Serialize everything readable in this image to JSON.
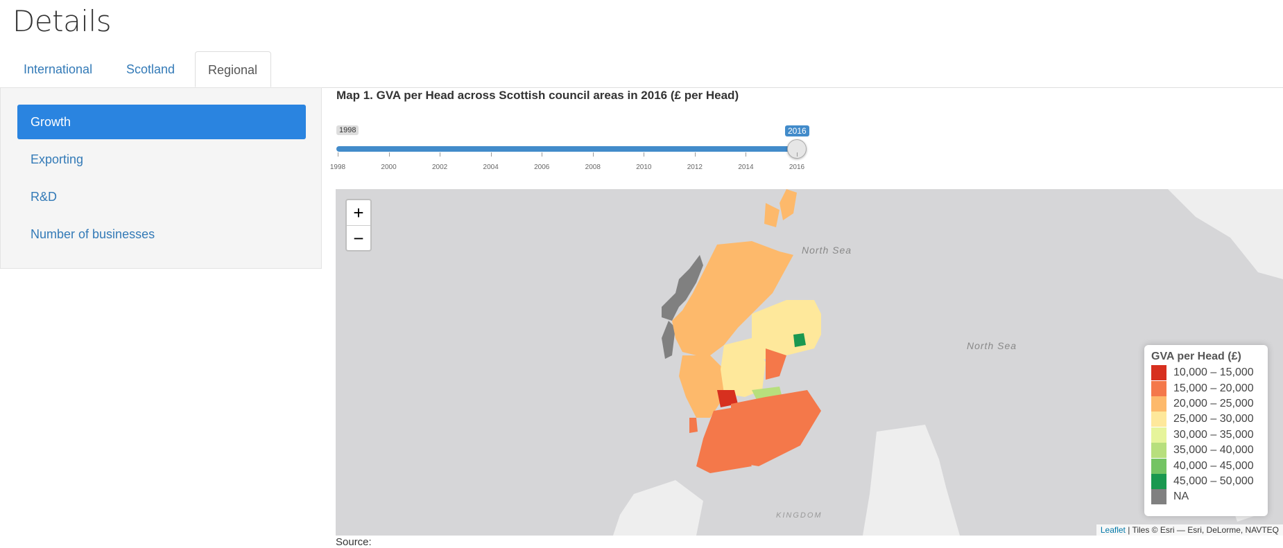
{
  "page": {
    "title": "Details"
  },
  "tabs": [
    {
      "label": "International"
    },
    {
      "label": "Scotland"
    },
    {
      "label": "Regional"
    }
  ],
  "sidebar": {
    "items": [
      {
        "label": "Growth"
      },
      {
        "label": "Exporting"
      },
      {
        "label": "R&D"
      },
      {
        "label": "Number of businesses"
      }
    ]
  },
  "map_title": "Map 1. GVA per Head across Scottish council areas in 2016 (£ per Head)",
  "slider": {
    "min_label": "1998",
    "value_label": "2016",
    "min": 1998,
    "max": 2016,
    "value": 2016,
    "ticks": [
      "1998",
      "2000",
      "2002",
      "2004",
      "2006",
      "2008",
      "2010",
      "2012",
      "2014",
      "2016"
    ]
  },
  "map": {
    "zoom_in": "+",
    "zoom_out": "−",
    "sea_labels": [
      "North Sea",
      "North Sea"
    ],
    "partial_label": "KINGDOM",
    "legend": {
      "title": "GVA per Head (£)",
      "items": [
        {
          "label": "10,000 – 15,000",
          "color": "#d7301f"
        },
        {
          "label": "15,000 – 20,000",
          "color": "#f4784a"
        },
        {
          "label": "20,000 – 25,000",
          "color": "#fdb96b"
        },
        {
          "label": "25,000 – 30,000",
          "color": "#fee89b"
        },
        {
          "label": "30,000 – 35,000",
          "color": "#e6f49b"
        },
        {
          "label": "35,000 – 40,000",
          "color": "#b7df7d"
        },
        {
          "label": "40,000 – 45,000",
          "color": "#74c464"
        },
        {
          "label": "45,000 – 50,000",
          "color": "#1a9850"
        },
        {
          "label": "NA",
          "color": "#808080"
        }
      ]
    },
    "attribution": {
      "link": "Leaflet",
      "text": " | Tiles © Esri — Esri, DeLorme, NAVTEQ"
    }
  },
  "source_label": "Source:"
}
